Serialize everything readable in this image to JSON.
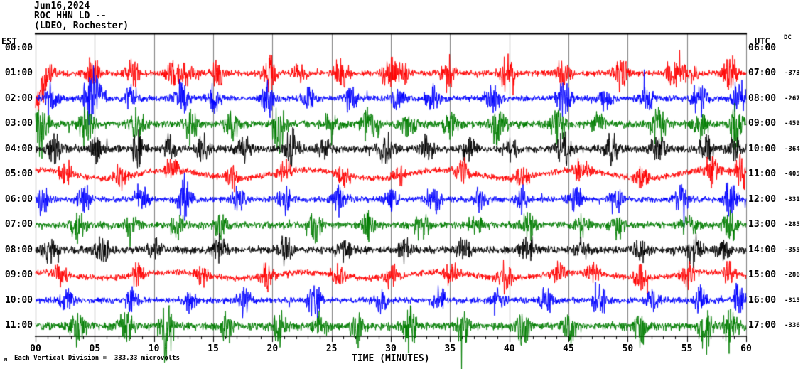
{
  "header": {
    "date": "Jun16,2024",
    "station": "ROC HHN LD --",
    "location": "(LDEO, Rochester)"
  },
  "axis": {
    "left_tz_header": "EST",
    "right_tz_header": "UTC",
    "dc_header": "DC",
    "top_left_label": "00:00",
    "top_right_label": "06:00",
    "x_tick_labels": [
      "00",
      "05",
      "10",
      "15",
      "20",
      "25",
      "30",
      "35",
      "40",
      "45",
      "50",
      "55",
      "60"
    ],
    "xlabel": "TIME (MINUTES)"
  },
  "footer": {
    "mark": "M",
    "scale_note": "Each Vertical Division =  333.33 microvolts"
  },
  "chart_data": {
    "type": "line",
    "title": "ROC HHN LD -- (LDEO, Rochester) Jun16,2024",
    "xlabel": "TIME (MINUTES)",
    "x_range_minutes": [
      0,
      60
    ],
    "x_major_tick_minutes": 5,
    "x_minor_tick_minutes": 1,
    "vertical_division_microvolts": 333.33,
    "grid_color": "#7f7f7f",
    "frame_color": "#000000",
    "palette": {
      "red": "#ff0000",
      "blue": "#0000ff",
      "green": "#007d00",
      "black": "#000000"
    },
    "rows": [
      {
        "est": "01:00",
        "utc": "07:00",
        "dc": -373,
        "color": "red",
        "seed": 11,
        "noise": 4,
        "ramp": 38,
        "bursts": [
          [
            0.4,
            22
          ],
          [
            1.2,
            14
          ],
          [
            4.8,
            24
          ],
          [
            8.2,
            16
          ],
          [
            11.6,
            22
          ],
          [
            12.8,
            14
          ],
          [
            15.4,
            18
          ],
          [
            19.8,
            24
          ],
          [
            22.3,
            12
          ],
          [
            25.8,
            22
          ],
          [
            29.8,
            20
          ],
          [
            31.0,
            14
          ],
          [
            34.8,
            22
          ],
          [
            39.8,
            24
          ],
          [
            44.6,
            20
          ],
          [
            49.4,
            22
          ],
          [
            53.8,
            18
          ],
          [
            55.2,
            14
          ],
          [
            58.6,
            26
          ]
        ]
      },
      {
        "est": "02:00",
        "utc": "08:00",
        "dc": -267,
        "color": "blue",
        "seed": 22,
        "noise": 4,
        "bursts": [
          [
            1.3,
            18
          ],
          [
            4.6,
            30
          ],
          [
            5.3,
            22
          ],
          [
            8.1,
            16
          ],
          [
            12.3,
            22
          ],
          [
            15.1,
            16
          ],
          [
            19.6,
            26
          ],
          [
            23.1,
            14
          ],
          [
            26.6,
            18
          ],
          [
            30.6,
            16
          ],
          [
            33.6,
            26
          ],
          [
            38.6,
            18
          ],
          [
            44.6,
            28
          ],
          [
            48.1,
            14
          ],
          [
            51.6,
            16
          ],
          [
            56.1,
            26
          ],
          [
            59.4,
            22
          ]
        ]
      },
      {
        "est": "03:00",
        "utc": "09:00",
        "dc": -459,
        "color": "green",
        "seed": 33,
        "noise": 4,
        "spike_down": 1.5,
        "bursts": [
          [
            0.5,
            26
          ],
          [
            4.3,
            20
          ],
          [
            8.6,
            18
          ],
          [
            13.1,
            16
          ],
          [
            16.6,
            14
          ],
          [
            20.6,
            26
          ],
          [
            24.9,
            14
          ],
          [
            28.1,
            16
          ],
          [
            31.6,
            18
          ],
          [
            35.1,
            14
          ],
          [
            39.1,
            20
          ],
          [
            44.1,
            18
          ],
          [
            47.6,
            16
          ],
          [
            52.6,
            26
          ],
          [
            56.1,
            18
          ],
          [
            59.2,
            24
          ]
        ]
      },
      {
        "est": "04:00",
        "utc": "10:00",
        "dc": -364,
        "color": "black",
        "seed": 44,
        "noise": 5,
        "bursts": [
          [
            1.6,
            18
          ],
          [
            5.1,
            16
          ],
          [
            8.6,
            20
          ],
          [
            11.3,
            14
          ],
          [
            14.1,
            16
          ],
          [
            17.6,
            20
          ],
          [
            21.6,
            24
          ],
          [
            24.3,
            14
          ],
          [
            29.6,
            20
          ],
          [
            33.1,
            16
          ],
          [
            36.6,
            18
          ],
          [
            40.1,
            14
          ],
          [
            44.6,
            20
          ],
          [
            48.6,
            18
          ],
          [
            52.6,
            20
          ],
          [
            56.6,
            18
          ],
          [
            59.1,
            14
          ]
        ]
      },
      {
        "est": "05:00",
        "utc": "11:00",
        "dc": -405,
        "color": "red",
        "seed": 55,
        "noise": 4,
        "wander": 6,
        "bursts": [
          [
            2.6,
            16
          ],
          [
            7.1,
            14
          ],
          [
            11.6,
            18
          ],
          [
            16.6,
            16
          ],
          [
            21.1,
            14
          ],
          [
            26.1,
            16
          ],
          [
            30.6,
            14
          ],
          [
            36.1,
            16
          ],
          [
            41.1,
            14
          ],
          [
            46.1,
            16
          ],
          [
            51.1,
            14
          ],
          [
            57.1,
            22
          ],
          [
            59.6,
            24
          ]
        ]
      },
      {
        "est": "06:00",
        "utc": "12:00",
        "dc": -331,
        "color": "blue",
        "seed": 66,
        "noise": 4,
        "bursts": [
          [
            0.6,
            16
          ],
          [
            4.1,
            18
          ],
          [
            9.1,
            14
          ],
          [
            12.6,
            26
          ],
          [
            17.1,
            16
          ],
          [
            21.1,
            18
          ],
          [
            25.6,
            20
          ],
          [
            30.1,
            14
          ],
          [
            33.6,
            20
          ],
          [
            37.6,
            16
          ],
          [
            41.1,
            14
          ],
          [
            45.6,
            20
          ],
          [
            49.1,
            14
          ],
          [
            54.6,
            18
          ],
          [
            58.6,
            26
          ]
        ]
      },
      {
        "est": "07:00",
        "utc": "13:00",
        "dc": -285,
        "color": "green",
        "seed": 77,
        "noise": 4,
        "spike_down": 1.4,
        "bursts": [
          [
            3.6,
            16
          ],
          [
            8.1,
            12
          ],
          [
            12.1,
            14
          ],
          [
            15.6,
            12
          ],
          [
            23.6,
            16
          ],
          [
            28.1,
            12
          ],
          [
            32.6,
            14
          ],
          [
            37.1,
            12
          ],
          [
            41.6,
            16
          ],
          [
            46.1,
            12
          ],
          [
            49.1,
            12
          ],
          [
            55.1,
            14
          ],
          [
            58.6,
            18
          ]
        ]
      },
      {
        "est": "08:00",
        "utc": "14:00",
        "dc": -355,
        "color": "black",
        "seed": 88,
        "noise": 5,
        "bursts": [
          [
            1.1,
            16
          ],
          [
            5.6,
            18
          ],
          [
            10.1,
            14
          ],
          [
            15.6,
            18
          ],
          [
            21.1,
            16
          ],
          [
            26.1,
            14
          ],
          [
            31.1,
            16
          ],
          [
            36.1,
            14
          ],
          [
            41.6,
            18
          ],
          [
            46.1,
            14
          ],
          [
            51.1,
            16
          ],
          [
            55.6,
            20
          ],
          [
            58.1,
            14
          ]
        ]
      },
      {
        "est": "09:00",
        "utc": "15:00",
        "dc": -286,
        "color": "red",
        "seed": 99,
        "noise": 4,
        "wander": 4,
        "bursts": [
          [
            2.1,
            14
          ],
          [
            8.6,
            16
          ],
          [
            14.1,
            14
          ],
          [
            19.6,
            18
          ],
          [
            25.6,
            16
          ],
          [
            30.1,
            14
          ],
          [
            35.1,
            14
          ],
          [
            39.6,
            20
          ],
          [
            44.1,
            14
          ],
          [
            47.1,
            12
          ],
          [
            51.1,
            14
          ],
          [
            55.1,
            16
          ],
          [
            58.5,
            14
          ]
        ]
      },
      {
        "est": "10:00",
        "utc": "16:00",
        "dc": -315,
        "color": "blue",
        "seed": 110,
        "noise": 4,
        "bursts": [
          [
            2.6,
            16
          ],
          [
            8.1,
            14
          ],
          [
            13.1,
            16
          ],
          [
            17.6,
            18
          ],
          [
            23.6,
            24
          ],
          [
            29.1,
            14
          ],
          [
            34.1,
            16
          ],
          [
            39.1,
            14
          ],
          [
            43.1,
            16
          ],
          [
            47.6,
            24
          ],
          [
            52.1,
            14
          ],
          [
            56.1,
            16
          ],
          [
            59.4,
            20
          ]
        ]
      },
      {
        "est": "11:00",
        "utc": "17:00",
        "dc": -336,
        "color": "green",
        "seed": 121,
        "noise": 4,
        "spike_down": 1.6,
        "bursts": [
          [
            3.6,
            16
          ],
          [
            7.6,
            22
          ],
          [
            11.1,
            30
          ],
          [
            16.1,
            14
          ],
          [
            20.6,
            18
          ],
          [
            24.1,
            14
          ],
          [
            27.1,
            14
          ],
          [
            31.6,
            22
          ],
          [
            36.1,
            14
          ],
          [
            41.1,
            16
          ],
          [
            45.1,
            14
          ],
          [
            51.1,
            16
          ],
          [
            56.6,
            22
          ],
          [
            58.8,
            20
          ]
        ]
      }
    ]
  }
}
